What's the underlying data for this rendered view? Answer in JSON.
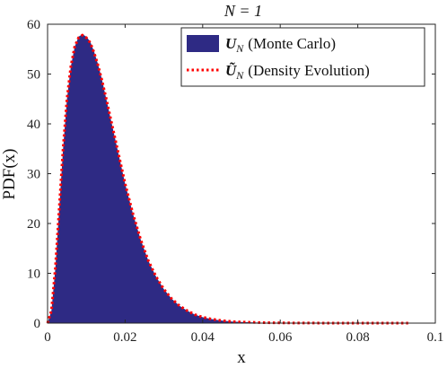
{
  "chart_data": {
    "type": "area",
    "title": "N = 1",
    "xlabel": "x",
    "ylabel": "PDF(x)",
    "xlim": [
      0,
      0.1
    ],
    "ylim": [
      0,
      60
    ],
    "xticks": [
      "0",
      "0.02",
      "0.04",
      "0.06",
      "0.08",
      "0.1"
    ],
    "xtick_values": [
      0,
      0.02,
      0.04,
      0.06,
      0.08,
      0.1
    ],
    "yticks": [
      "0",
      "10",
      "20",
      "30",
      "40",
      "50",
      "60"
    ],
    "ytick_values": [
      0,
      10,
      20,
      30,
      40,
      50,
      60
    ],
    "grid": false,
    "legend_position": "top-right",
    "colors": {
      "histogram": "#2e2a84",
      "density": "#ff0000"
    },
    "series": [
      {
        "name": "U_N (Monte Carlo)",
        "legend_symbol": "U",
        "legend_subscript": "N",
        "legend_text": "(Monte Carlo)",
        "style": "filled-histogram",
        "x": [
          0,
          0.001,
          0.002,
          0.003,
          0.004,
          0.005,
          0.006,
          0.007,
          0.008,
          0.009,
          0.01,
          0.011,
          0.012,
          0.013,
          0.014,
          0.015,
          0.016,
          0.017,
          0.018,
          0.019,
          0.02,
          0.022,
          0.024,
          0.026,
          0.028,
          0.03,
          0.032,
          0.034,
          0.036,
          0.038,
          0.04,
          0.042,
          0.044,
          0.046,
          0.048,
          0.05,
          0.055,
          0.06,
          0.065,
          0.07,
          0.075,
          0.08,
          0.085,
          0.09,
          0.093
        ],
        "y": [
          0,
          2.5,
          11,
          23,
          35,
          45,
          51.5,
          55.5,
          57.5,
          58,
          57.5,
          56.5,
          54.5,
          52,
          49,
          45.5,
          42,
          38.5,
          35,
          31.5,
          28,
          22,
          16.8,
          12.5,
          9.3,
          6.8,
          4.9,
          3.5,
          2.5,
          1.7,
          1.2,
          0.85,
          0.6,
          0.42,
          0.3,
          0.22,
          0.1,
          0.05,
          0.02,
          0.01,
          0.005,
          0.002,
          0.001,
          0,
          0
        ]
      },
      {
        "name": "Ũ_N (Density Evolution)",
        "legend_symbol": "Ũ",
        "legend_subscript": "N",
        "legend_text": "(Density Evolution)",
        "style": "dotted-line",
        "x": [
          0,
          0.001,
          0.002,
          0.003,
          0.004,
          0.005,
          0.006,
          0.007,
          0.008,
          0.009,
          0.01,
          0.011,
          0.012,
          0.013,
          0.014,
          0.015,
          0.016,
          0.017,
          0.018,
          0.019,
          0.02,
          0.022,
          0.024,
          0.026,
          0.028,
          0.03,
          0.032,
          0.034,
          0.036,
          0.038,
          0.04,
          0.042,
          0.044,
          0.046,
          0.048,
          0.05,
          0.055,
          0.06,
          0.065,
          0.07,
          0.075,
          0.08,
          0.085,
          0.09,
          0.093
        ],
        "y": [
          0,
          2.5,
          11,
          23,
          35,
          45,
          51.5,
          55.5,
          57.3,
          57.8,
          57.3,
          56.3,
          54.3,
          51.8,
          48.8,
          45.5,
          42,
          38.5,
          35,
          31.5,
          28,
          22,
          16.8,
          12.5,
          9.3,
          6.8,
          4.9,
          3.5,
          2.5,
          1.7,
          1.2,
          0.85,
          0.6,
          0.42,
          0.3,
          0.22,
          0.1,
          0.05,
          0.02,
          0.01,
          0.005,
          0.002,
          0.001,
          0,
          0
        ]
      }
    ]
  }
}
